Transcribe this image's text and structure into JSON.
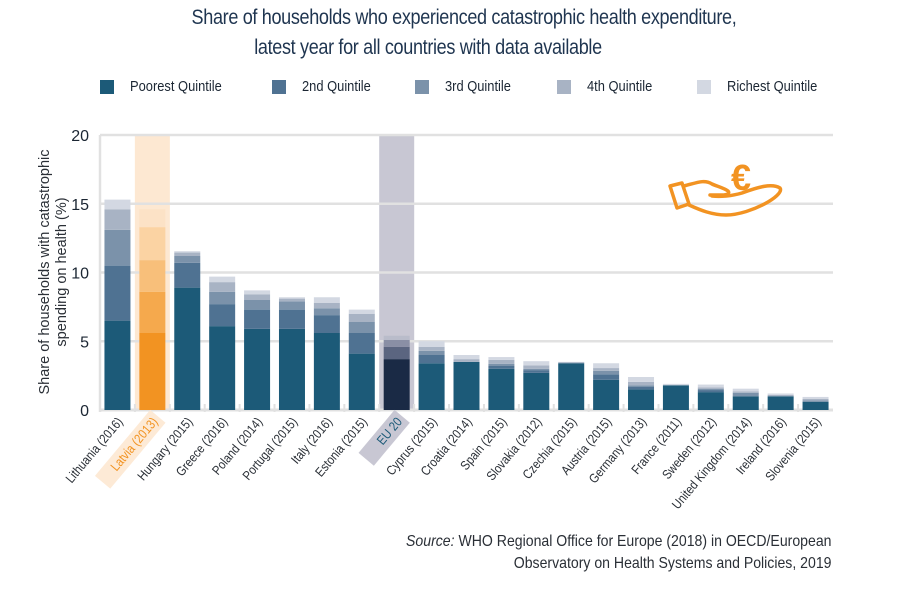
{
  "chart_data": {
    "type": "bar",
    "stacked": true,
    "title": "Share of households who experienced catastrophic health expenditure,",
    "subtitle": "latest year for all countries with data available",
    "ylabel": "Share of households with catastrophic spending on health (%)",
    "ylabel_lines": [
      "Share of households with catastrophic",
      "spending on health (%)"
    ],
    "xlabel": "",
    "ylim": [
      0,
      20
    ],
    "yticks": [
      0,
      5,
      10,
      15,
      20
    ],
    "grid": true,
    "legend_position": "top",
    "categories": [
      "Lithuania (2016)",
      "Latvia (2013)",
      "Hungary (2015)",
      "Greece (2016)",
      "Poland (2014)",
      "Portugal (2015)",
      "Italy (2016)",
      "Estonia (2015)",
      "EU 20",
      "Cyprus (2015)",
      "Croatia (2014)",
      "Spain (2015)",
      "Slovakia (2012)",
      "Czechia (2015)",
      "Austria (2015)",
      "Germany (2013)",
      "France (2011)",
      "Sweden (2012)",
      "United Kingdom (2014)",
      "Ireland (2016)",
      "Slovenia (2015)"
    ],
    "highlighted": {
      "Latvia (2013)": "latvia",
      "EU 20": "eu"
    },
    "series": [
      {
        "name": "Poorest Quintile",
        "values": [
          6.5,
          5.6,
          8.9,
          6.1,
          5.9,
          5.9,
          5.6,
          4.1,
          3.7,
          3.4,
          3.5,
          3.0,
          2.7,
          3.4,
          2.2,
          1.5,
          1.8,
          1.3,
          1.0,
          1.0,
          0.6
        ]
      },
      {
        "name": "2nd Quintile",
        "values": [
          4.0,
          3.0,
          1.8,
          1.6,
          1.4,
          1.4,
          1.3,
          1.5,
          0.0,
          0.6,
          0.0,
          0.2,
          0.2,
          0.0,
          0.4,
          0.2,
          0.0,
          0.15,
          0.0,
          0.0,
          0.0
        ]
      },
      {
        "name": "3rd Quintile",
        "values": [
          2.6,
          2.3,
          0.5,
          0.9,
          0.7,
          0.6,
          0.5,
          0.8,
          0.9,
          0.3,
          0.0,
          0.15,
          0.1,
          0.05,
          0.25,
          0.1,
          0.0,
          0.1,
          0.25,
          0.0,
          0.1
        ]
      },
      {
        "name": "4th Quintile",
        "values": [
          1.5,
          2.4,
          0.25,
          0.7,
          0.4,
          0.2,
          0.4,
          0.6,
          0.5,
          0.3,
          0.2,
          0.3,
          0.25,
          0.0,
          0.2,
          0.25,
          0.0,
          0.1,
          0.1,
          0.1,
          0.1
        ]
      },
      {
        "name": "Richest Quintile",
        "values": [
          0.7,
          1.3,
          0.1,
          0.4,
          0.3,
          0.1,
          0.4,
          0.3,
          0.3,
          0.4,
          0.3,
          0.2,
          0.3,
          0.05,
          0.35,
          0.35,
          0.1,
          0.2,
          0.2,
          0.1,
          0.15
        ]
      }
    ],
    "colors": {
      "default": [
        "#1c5a78",
        "#4f7292",
        "#7b92aa",
        "#a8b3c4",
        "#d3d8e2"
      ],
      "latvia": [
        "#f29322",
        "#f5a94d",
        "#f8bf7a",
        "#fbd3a3",
        "#fce2c6"
      ],
      "eu": [
        "#1a2a45",
        "#394563",
        "#5b6580",
        "#8a8fa5",
        "#b9bcca"
      ],
      "latvia_band": "#fde8d2",
      "eu_band": "#c8c7d3",
      "grid": "#e1e1e1",
      "label": "#2a2f36",
      "latvia_label": "#f29322",
      "eu_label": "#1c5a78"
    }
  },
  "header": {
    "title_line1": "Share of households who experienced catastrophic health expenditure,",
    "title_line2": "latest year for all countries with data available"
  },
  "legend": {
    "items": [
      {
        "label": "Poorest Quintile",
        "color": "#1c5a78"
      },
      {
        "label": "2nd Quintile",
        "color": "#4f7292"
      },
      {
        "label": "3rd Quintile",
        "color": "#7b92aa"
      },
      {
        "label": "4th Quintile",
        "color": "#a8b3c4"
      },
      {
        "label": "Richest Quintile",
        "color": "#d3d8e2"
      }
    ]
  },
  "icon": {
    "name": "hand-euro-icon",
    "glyph": "€",
    "color": "#f29322"
  },
  "source": {
    "prefix": "Source:",
    "line1": " WHO Regional Office for Europe (2018) in OECD/European",
    "line2": "Observatory on Health Systems and Policies, 2019"
  }
}
